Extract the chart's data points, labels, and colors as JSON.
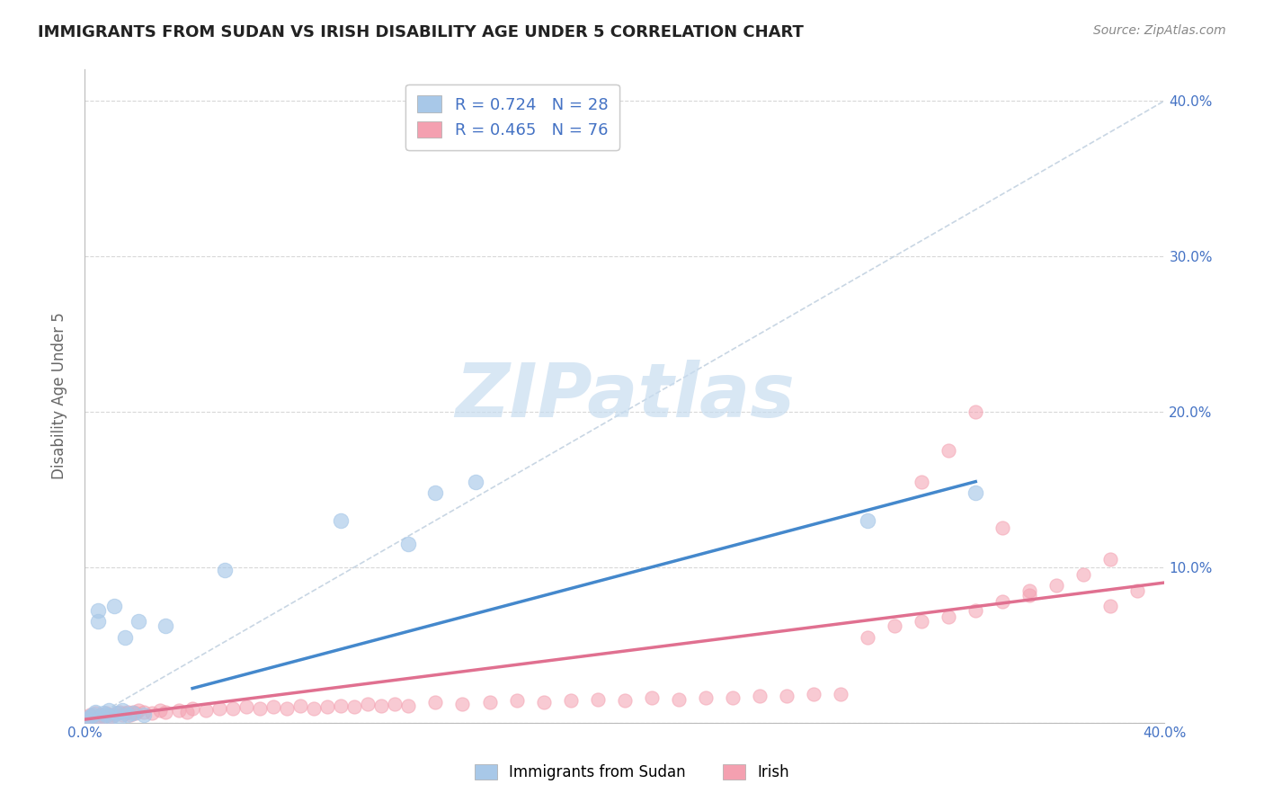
{
  "title": "IMMIGRANTS FROM SUDAN VS IRISH DISABILITY AGE UNDER 5 CORRELATION CHART",
  "source": "Source: ZipAtlas.com",
  "ylabel": "Disability Age Under 5",
  "xlim": [
    0.0,
    0.4
  ],
  "ylim": [
    0.0,
    0.42
  ],
  "legend_sudan_r": "R = 0.724",
  "legend_sudan_n": "N = 28",
  "legend_irish_r": "R = 0.465",
  "legend_irish_n": "N = 76",
  "watermark": "ZIPatlas",
  "sudan_color": "#a8c8e8",
  "irish_color": "#f4a0b0",
  "sudan_line_color": "#4488cc",
  "irish_line_color": "#e07090",
  "dashed_line_color": "#bbccdd",
  "sudan_scatter_x": [
    0.001,
    0.002,
    0.003,
    0.004,
    0.005,
    0.005,
    0.006,
    0.007,
    0.008,
    0.009,
    0.01,
    0.011,
    0.012,
    0.013,
    0.014,
    0.015,
    0.016,
    0.018,
    0.02,
    0.022,
    0.03,
    0.052,
    0.095,
    0.12,
    0.13,
    0.145,
    0.29,
    0.33
  ],
  "sudan_scatter_y": [
    0.002,
    0.004,
    0.005,
    0.007,
    0.065,
    0.072,
    0.003,
    0.006,
    0.005,
    0.008,
    0.004,
    0.075,
    0.006,
    0.003,
    0.008,
    0.055,
    0.005,
    0.006,
    0.065,
    0.005,
    0.062,
    0.098,
    0.13,
    0.115,
    0.148,
    0.155,
    0.13,
    0.148
  ],
  "irish_scatter_x": [
    0.001,
    0.002,
    0.003,
    0.004,
    0.005,
    0.006,
    0.007,
    0.008,
    0.009,
    0.01,
    0.011,
    0.012,
    0.013,
    0.014,
    0.015,
    0.016,
    0.017,
    0.018,
    0.019,
    0.02,
    0.022,
    0.025,
    0.028,
    0.03,
    0.035,
    0.038,
    0.04,
    0.045,
    0.05,
    0.055,
    0.06,
    0.065,
    0.07,
    0.075,
    0.08,
    0.085,
    0.09,
    0.095,
    0.1,
    0.105,
    0.11,
    0.115,
    0.12,
    0.13,
    0.14,
    0.15,
    0.16,
    0.17,
    0.18,
    0.19,
    0.2,
    0.21,
    0.22,
    0.23,
    0.24,
    0.25,
    0.26,
    0.27,
    0.28,
    0.29,
    0.3,
    0.31,
    0.32,
    0.33,
    0.34,
    0.35,
    0.36,
    0.37,
    0.38,
    0.39,
    0.31,
    0.32,
    0.33,
    0.34,
    0.35,
    0.38
  ],
  "irish_scatter_y": [
    0.003,
    0.005,
    0.004,
    0.006,
    0.003,
    0.005,
    0.004,
    0.006,
    0.005,
    0.004,
    0.005,
    0.006,
    0.007,
    0.005,
    0.006,
    0.007,
    0.005,
    0.007,
    0.006,
    0.008,
    0.007,
    0.006,
    0.008,
    0.007,
    0.008,
    0.007,
    0.009,
    0.008,
    0.009,
    0.009,
    0.01,
    0.009,
    0.01,
    0.009,
    0.011,
    0.009,
    0.01,
    0.011,
    0.01,
    0.012,
    0.011,
    0.012,
    0.011,
    0.013,
    0.012,
    0.013,
    0.014,
    0.013,
    0.014,
    0.015,
    0.014,
    0.016,
    0.015,
    0.016,
    0.016,
    0.017,
    0.017,
    0.018,
    0.018,
    0.055,
    0.062,
    0.065,
    0.068,
    0.072,
    0.078,
    0.082,
    0.088,
    0.095,
    0.105,
    0.085,
    0.155,
    0.175,
    0.2,
    0.125,
    0.085,
    0.075
  ],
  "sudan_trend_x": [
    0.04,
    0.33
  ],
  "sudan_trend_y": [
    0.022,
    0.155
  ],
  "irish_trend_x": [
    0.0,
    0.4
  ],
  "irish_trend_y": [
    0.002,
    0.09
  ],
  "dashed_trend_x": [
    0.0,
    0.4
  ],
  "dashed_trend_y": [
    0.0,
    0.4
  ],
  "title_fontsize": 13,
  "axis_tick_fontsize": 11,
  "ylabel_fontsize": 12,
  "source_fontsize": 10
}
